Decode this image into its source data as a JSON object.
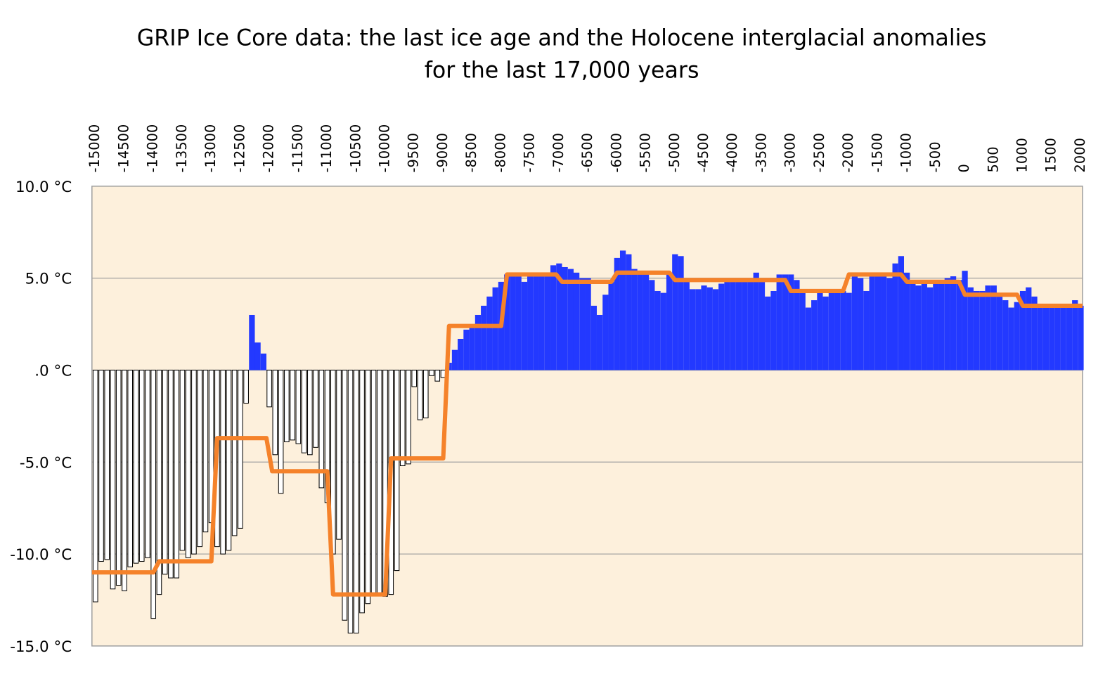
{
  "chart_data": {
    "type": "bar",
    "title": "GRIP Ice Core data:  the last ice age and the Holocene interglacial anomalies",
    "subtitle": "for the last 17,000 years",
    "x": [
      -15000,
      -14900,
      -14800,
      -14700,
      -14600,
      -14500,
      -14400,
      -14300,
      -14200,
      -14100,
      -14000,
      -13900,
      -13800,
      -13700,
      -13600,
      -13500,
      -13400,
      -13300,
      -13200,
      -13100,
      -13000,
      -12900,
      -12800,
      -12700,
      -12600,
      -12500,
      -12400,
      -12300,
      -12200,
      -12100,
      -12000,
      -11900,
      -11800,
      -11700,
      -11600,
      -11500,
      -11400,
      -11300,
      -11200,
      -11100,
      -11000,
      -10900,
      -10800,
      -10700,
      -10600,
      -10500,
      -10400,
      -10300,
      -10200,
      -10100,
      -10000,
      -9900,
      -9800,
      -9700,
      -9600,
      -9500,
      -9400,
      -9300,
      -9200,
      -9100,
      -9000,
      -8900,
      -8800,
      -8700,
      -8600,
      -8500,
      -8400,
      -8300,
      -8200,
      -8100,
      -8000,
      -7900,
      -7800,
      -7700,
      -7600,
      -7500,
      -7400,
      -7300,
      -7200,
      -7100,
      -7000,
      -6900,
      -6800,
      -6700,
      -6600,
      -6500,
      -6400,
      -6300,
      -6200,
      -6100,
      -6000,
      -5900,
      -5800,
      -5700,
      -5600,
      -5500,
      -5400,
      -5300,
      -5200,
      -5100,
      -5000,
      -4900,
      -4800,
      -4700,
      -4600,
      -4500,
      -4400,
      -4300,
      -4200,
      -4100,
      -4000,
      -3900,
      -3800,
      -3700,
      -3600,
      -3500,
      -3400,
      -3300,
      -3200,
      -3100,
      -3000,
      -2900,
      -2800,
      -2700,
      -2600,
      -2500,
      -2400,
      -2300,
      -2200,
      -2100,
      -2000,
      -1900,
      -1800,
      -1700,
      -1600,
      -1500,
      -1400,
      -1300,
      -1200,
      -1100,
      -1000,
      -900,
      -800,
      -700,
      -600,
      -500,
      -400,
      -300,
      -200,
      -100,
      0,
      100,
      200,
      300,
      400,
      500,
      600,
      700,
      800,
      900,
      1000,
      1100,
      1200,
      1300,
      1400,
      1500,
      1600,
      1700,
      1800,
      1900,
      2000
    ],
    "values": [
      -12.6,
      -10.4,
      -10.3,
      -11.9,
      -11.7,
      -12.0,
      -10.7,
      -10.5,
      -10.4,
      -10.2,
      -13.5,
      -12.2,
      -11.1,
      -11.3,
      -11.3,
      -9.8,
      -10.2,
      -10.0,
      -9.6,
      -8.8,
      -8.3,
      -9.6,
      -10.0,
      -9.8,
      -9.0,
      -8.6,
      -1.8,
      3.0,
      1.5,
      0.9,
      -2.0,
      -4.6,
      -6.7,
      -3.9,
      -3.8,
      -4.0,
      -4.5,
      -4.6,
      -4.2,
      -6.4,
      -7.2,
      -10.0,
      -9.2,
      -13.6,
      -14.3,
      -14.3,
      -13.2,
      -12.7,
      -12.1,
      -12.1,
      -12.3,
      -12.2,
      -10.9,
      -5.2,
      -5.1,
      -0.9,
      -2.7,
      -2.6,
      -0.3,
      -0.6,
      -0.4,
      0.4,
      1.1,
      1.7,
      2.2,
      2.5,
      3.0,
      3.5,
      4.0,
      4.5,
      4.8,
      5.2,
      5.3,
      5.1,
      4.8,
      5.1,
      5.3,
      5.2,
      5.3,
      5.7,
      5.8,
      5.6,
      5.5,
      5.3,
      5.0,
      5.0,
      3.5,
      3.0,
      4.1,
      4.8,
      6.1,
      6.5,
      6.3,
      5.5,
      5.2,
      5.2,
      4.9,
      4.3,
      4.2,
      5.2,
      6.3,
      6.2,
      5.0,
      4.4,
      4.4,
      4.6,
      4.5,
      4.4,
      4.7,
      4.8,
      5.0,
      5.0,
      4.9,
      5.0,
      5.3,
      4.8,
      4.0,
      4.3,
      5.2,
      5.2,
      5.2,
      4.9,
      4.4,
      3.4,
      3.8,
      4.2,
      4.0,
      4.3,
      4.4,
      4.3,
      4.2,
      5.1,
      5.0,
      4.3,
      5.2,
      5.3,
      5.2,
      5.0,
      5.8,
      6.2,
      5.3,
      4.8,
      4.6,
      4.7,
      4.5,
      4.7,
      4.9,
      5.0,
      5.1,
      4.9,
      5.4,
      4.5,
      4.3,
      4.3,
      4.6,
      4.6,
      4.2,
      3.8,
      3.4,
      3.7,
      4.3,
      4.5,
      4.0,
      3.5,
      3.5,
      3.5,
      3.4,
      3.5,
      3.6,
      3.8,
      3.5
    ],
    "positive_color": "#2339ff",
    "negative_color": "#ffffff",
    "negative_edge_color": "#000000",
    "line": {
      "color": "#f5822a",
      "x": [
        -15060,
        -14000,
        -13900,
        -13000,
        -12900,
        -12050,
        -11950,
        -11000,
        -10900,
        -10000,
        -9900,
        -9000,
        -8900,
        -8000,
        -7900,
        -7050,
        -6950,
        -6100,
        -6000,
        -5100,
        -5000,
        -3100,
        -3000,
        -2100,
        -2000,
        -1100,
        -1000,
        -100,
        0,
        900,
        1000,
        2030
      ],
      "values": [
        -11.0,
        -11.0,
        -10.4,
        -10.4,
        -3.7,
        -3.7,
        -5.5,
        -5.5,
        -12.2,
        -12.2,
        -4.8,
        -4.8,
        2.4,
        2.4,
        5.2,
        5.2,
        4.8,
        4.8,
        5.3,
        5.3,
        4.9,
        4.9,
        4.3,
        4.3,
        5.2,
        5.2,
        4.8,
        4.8,
        4.1,
        4.1,
        3.5,
        3.5
      ]
    },
    "xlim": [
      -15060,
      2030
    ],
    "xticks": [
      -15000,
      -14500,
      -14000,
      -13500,
      -13000,
      -12500,
      -12000,
      -11500,
      -11000,
      -10500,
      -10000,
      -9500,
      -9000,
      -8500,
      -8000,
      -7500,
      -7000,
      -6500,
      -6000,
      -5500,
      -5000,
      -4500,
      -4000,
      -3500,
      -3000,
      -2500,
      -2000,
      -1500,
      -1000,
      -500,
      0,
      500,
      1000,
      1500,
      2000
    ],
    "ylim": [
      -15,
      10
    ],
    "yticks": [
      {
        "value": 10,
        "label": "10.0 °C"
      },
      {
        "value": 5,
        "label": "5.0 °C"
      },
      {
        "value": 0,
        "label": ".0 °C"
      },
      {
        "value": -5,
        "label": "-5.0 °C"
      },
      {
        "value": -10,
        "label": "-10.0 °C"
      },
      {
        "value": -15,
        "label": "-15.0 °C"
      }
    ],
    "grid": true,
    "background": "#fdf0dc"
  }
}
